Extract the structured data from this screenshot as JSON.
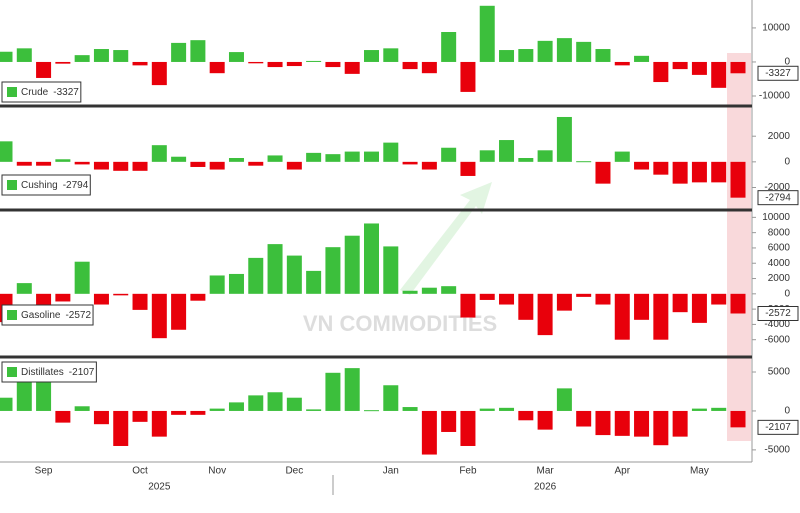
{
  "chart_data": [
    {
      "type": "bar",
      "positive_color": "#3cbf3c",
      "negative_color": "#e8000b",
      "ylim": [
        -12350,
        18200
      ],
      "yticks": [
        -10000,
        0,
        10000
      ],
      "series": [
        {
          "name": "Crude",
          "values": [
            3000,
            4000,
            -4700,
            -500,
            2000,
            3800,
            3500,
            -1000,
            -6800,
            5600,
            6400,
            -3300,
            2900,
            -400,
            -1500,
            -1200,
            300,
            -1500,
            -3500,
            3500,
            4000,
            -2100,
            -3300,
            8800,
            -8800,
            16500,
            3500,
            3800,
            6200,
            7000,
            5900,
            3800,
            -1000,
            1800,
            -5900,
            -2100,
            -3800,
            -7600,
            -3327
          ]
        }
      ]
    },
    {
      "type": "bar",
      "positive_color": "#3cbf3c",
      "negative_color": "#e8000b",
      "ylim": [
        -3600,
        4200
      ],
      "yticks": [
        -2000,
        0,
        2000
      ],
      "series": [
        {
          "name": "Cushing",
          "values": [
            1600,
            -300,
            -300,
            200,
            -200,
            -600,
            -700,
            -700,
            1300,
            400,
            -400,
            -600,
            300,
            -300,
            500,
            -600,
            700,
            600,
            800,
            800,
            1500,
            -200,
            -600,
            1100,
            -1100,
            900,
            1700,
            300,
            900,
            3500,
            50,
            -1700,
            800,
            -600,
            -1000,
            -1700,
            -1600,
            -1600,
            -2794
          ]
        }
      ]
    },
    {
      "type": "bar",
      "positive_color": "#3cbf3c",
      "negative_color": "#e8000b",
      "ylim": [
        -8000,
        10700
      ],
      "yticks": [
        -6000,
        -4000,
        -2000,
        0,
        2000,
        4000,
        6000,
        8000,
        10000
      ],
      "series": [
        {
          "name": "Gasoline",
          "values": [
            -3700,
            1400,
            -2200,
            -1000,
            4200,
            -1400,
            -200,
            -2100,
            -5800,
            -4700,
            -900,
            2400,
            2600,
            4700,
            6500,
            5000,
            3000,
            6100,
            7600,
            9200,
            6200,
            400,
            800,
            1000,
            -3100,
            -800,
            -1400,
            -3400,
            -5400,
            -2200,
            -400,
            -1400,
            -6000,
            -3400,
            -6000,
            -2400,
            -3800,
            -1400,
            -2572
          ]
        }
      ]
    },
    {
      "type": "bar",
      "positive_color": "#3cbf3c",
      "negative_color": "#e8000b",
      "ylim": [
        -6300,
        6800
      ],
      "yticks": [
        -5000,
        0,
        5000
      ],
      "series": [
        {
          "name": "Distillates",
          "values": [
            1700,
            4000,
            4000,
            -1500,
            600,
            -1700,
            -4500,
            -1400,
            -3300,
            -500,
            -500,
            300,
            1100,
            2000,
            2400,
            1700,
            200,
            4900,
            5500,
            100,
            3300,
            500,
            -5600,
            -2700,
            -4500,
            300,
            400,
            -1200,
            -2400,
            2900,
            -2000,
            -3100,
            -3200,
            -3300,
            -4400,
            -3300,
            300,
            400,
            -2107
          ]
        }
      ],
      "categories": [
        null,
        null,
        "Sep",
        null,
        null,
        null,
        null,
        "Oct",
        null,
        null,
        null,
        "Nov",
        null,
        null,
        null,
        "Dec",
        null,
        null,
        null,
        null,
        "Jan",
        null,
        null,
        null,
        "Feb",
        null,
        null,
        null,
        "Mar",
        null,
        null,
        null,
        "Apr",
        null,
        null,
        null,
        "May",
        null,
        null
      ],
      "year_categories": [
        null,
        null,
        null,
        null,
        null,
        null,
        null,
        null,
        "2025",
        null,
        null,
        null,
        null,
        null,
        null,
        null,
        null,
        null,
        null,
        null,
        null,
        null,
        null,
        null,
        null,
        null,
        null,
        null,
        "2026",
        null,
        null,
        null,
        null,
        null,
        null,
        null,
        null,
        null,
        null
      ]
    }
  ],
  "watermark": "VN COMMODITIES"
}
